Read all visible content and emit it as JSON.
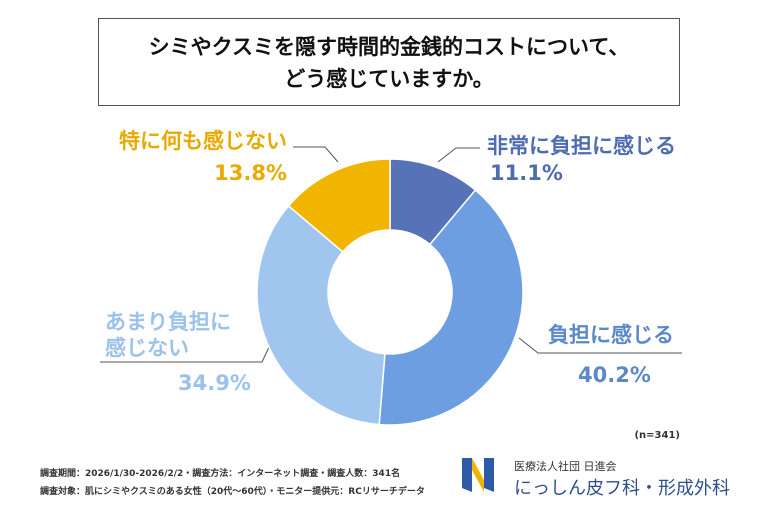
{
  "chart_data": {
    "type": "pie",
    "donut": true,
    "title": [
      "シミやクスミを隠す時間的金銭的コストについて、",
      "どう感じていますか。"
    ],
    "categories": [
      "非常に負担に感じる",
      "負担に感じる",
      "あまり負担に感じない",
      "特に何も感じない"
    ],
    "values": [
      11.1,
      40.2,
      34.9,
      13.8
    ],
    "value_labels": [
      "11.1%",
      "40.2%",
      "34.9%",
      "13.8%"
    ],
    "colors": [
      "#5673b8",
      "#6e9ee2",
      "#a0c5ef",
      "#f1b500"
    ],
    "note": "(n=341)"
  },
  "footer": {
    "notes": [
      "調査期間：2026/1/30-2026/2/2・調査方法：インターネット調査・調査人数：341名",
      "調査対象：肌にシミやクスミのある女性（20代～60代）・モニター提供元：RCリサーチデータ"
    ],
    "organization": "医療法人社団 日進会",
    "clinic": "にっしん皮フ科・形成外科"
  }
}
